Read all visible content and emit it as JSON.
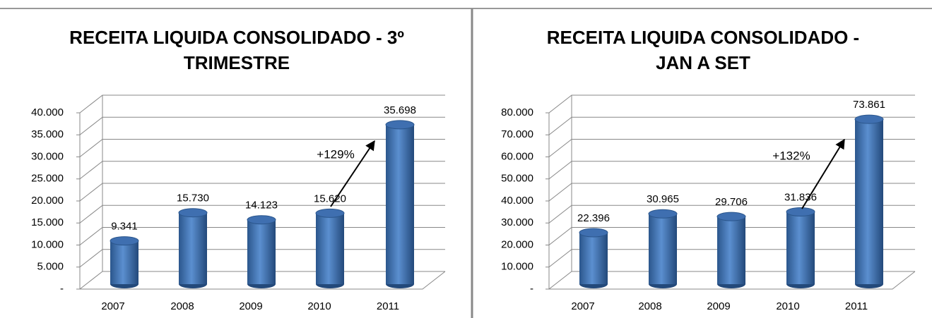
{
  "chart_data": [
    {
      "type": "bar",
      "title": [
        "RECEITA LIQUIDA CONSOLIDADO - 3º",
        "TRIMESTRE"
      ],
      "categories": [
        "2007",
        "2008",
        "2009",
        "2010",
        "2011"
      ],
      "values": [
        9341,
        15730,
        14123,
        15620,
        35698
      ],
      "value_labels": [
        "9.341",
        "15.730",
        "14.123",
        "15.620",
        "35.698"
      ],
      "color": "#4f81bd",
      "ylim": [
        0,
        40000
      ],
      "yticks": [
        {
          "value": 0,
          "label": "-"
        },
        {
          "value": 5000,
          "label": "5.000"
        },
        {
          "value": 10000,
          "label": "10.000"
        },
        {
          "value": 15000,
          "label": "15.000"
        },
        {
          "value": 20000,
          "label": "20.000"
        },
        {
          "value": 25000,
          "label": "25.000"
        },
        {
          "value": 30000,
          "label": "30.000"
        },
        {
          "value": 35000,
          "label": "35.000"
        },
        {
          "value": 40000,
          "label": "40.000"
        }
      ],
      "grid": true,
      "annotation": "+129%"
    },
    {
      "type": "bar",
      "title": [
        "RECEITA LIQUIDA CONSOLIDADO -",
        "JAN A SET"
      ],
      "categories": [
        "2007",
        "2008",
        "2009",
        "2010",
        "2011"
      ],
      "values": [
        22396,
        30965,
        29706,
        31836,
        73861
      ],
      "value_labels": [
        "22.396",
        "30.965",
        "29.706",
        "31.836",
        "73.861"
      ],
      "color": "#4f81bd",
      "ylim": [
        0,
        80000
      ],
      "yticks": [
        {
          "value": 0,
          "label": "-"
        },
        {
          "value": 10000,
          "label": "10.000"
        },
        {
          "value": 20000,
          "label": "20.000"
        },
        {
          "value": 30000,
          "label": "30.000"
        },
        {
          "value": 40000,
          "label": "40.000"
        },
        {
          "value": 50000,
          "label": "50.000"
        },
        {
          "value": 60000,
          "label": "60.000"
        },
        {
          "value": 70000,
          "label": "70.000"
        },
        {
          "value": 80000,
          "label": "80.000"
        }
      ],
      "grid": true,
      "annotation": "+132%"
    }
  ]
}
